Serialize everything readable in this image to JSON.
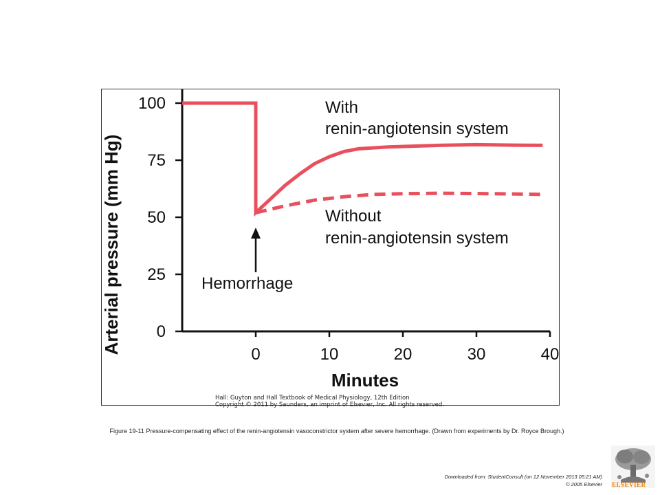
{
  "chart_data": {
    "type": "line",
    "ylabel": "Arterial pressure (mm Hg)",
    "xlabel": "Minutes",
    "xlim": [
      -10,
      40
    ],
    "ylim": [
      0,
      100
    ],
    "x_ticks": [
      0,
      10,
      20,
      30,
      40
    ],
    "y_ticks": [
      0,
      25,
      50,
      75,
      100
    ],
    "series": [
      {
        "name": "With renin-angiotensin system",
        "style": "solid",
        "color": "#e8505e",
        "points": [
          [
            -10,
            100
          ],
          [
            0,
            100
          ],
          [
            0,
            52
          ],
          [
            2,
            58
          ],
          [
            4,
            64
          ],
          [
            6,
            69
          ],
          [
            8,
            73.5
          ],
          [
            10,
            76.5
          ],
          [
            12,
            78.8
          ],
          [
            14,
            80
          ],
          [
            18,
            80.8
          ],
          [
            25,
            81.5
          ],
          [
            30,
            81.8
          ],
          [
            35,
            81.6
          ],
          [
            39,
            81.5
          ]
        ]
      },
      {
        "name": "Without renin-angiotensin system",
        "style": "dashed",
        "color": "#e8505e",
        "points": [
          [
            0,
            52
          ],
          [
            4,
            55
          ],
          [
            8,
            57.5
          ],
          [
            12,
            59
          ],
          [
            16,
            60
          ],
          [
            20,
            60.3
          ],
          [
            25,
            60.5
          ],
          [
            30,
            60.4
          ],
          [
            35,
            60.2
          ],
          [
            39,
            60
          ]
        ]
      }
    ],
    "annotations": {
      "with_line1": "With",
      "with_line2": "renin-angiotensin system",
      "without_line1": "Without",
      "without_line2": "renin-angiotensin system",
      "event": "Hemorrhage"
    }
  },
  "credit": {
    "line1": "Hall: Guyton and Hall Textbook of Medical Physiology, 12th Edition",
    "line2": "Copyright © 2011 by Saunders, an imprint of Elsevier, Inc. All rights reserved."
  },
  "caption": "Figure 19-11 Pressure-compensating effect of the renin-angiotensin vasoconstrictor system after severe hemorrhage. (Drawn from experiments by Dr. Royce Brough.)",
  "footer": {
    "downloaded": "Downloaded from: StudentConsult (on 12 November 2013 05:21 AM)",
    "copyright": "© 2005 Elsevier"
  },
  "logo": {
    "name": "elsevier-tree-logo",
    "wordmark": "ELSEVIER",
    "color": "#f07d00"
  }
}
